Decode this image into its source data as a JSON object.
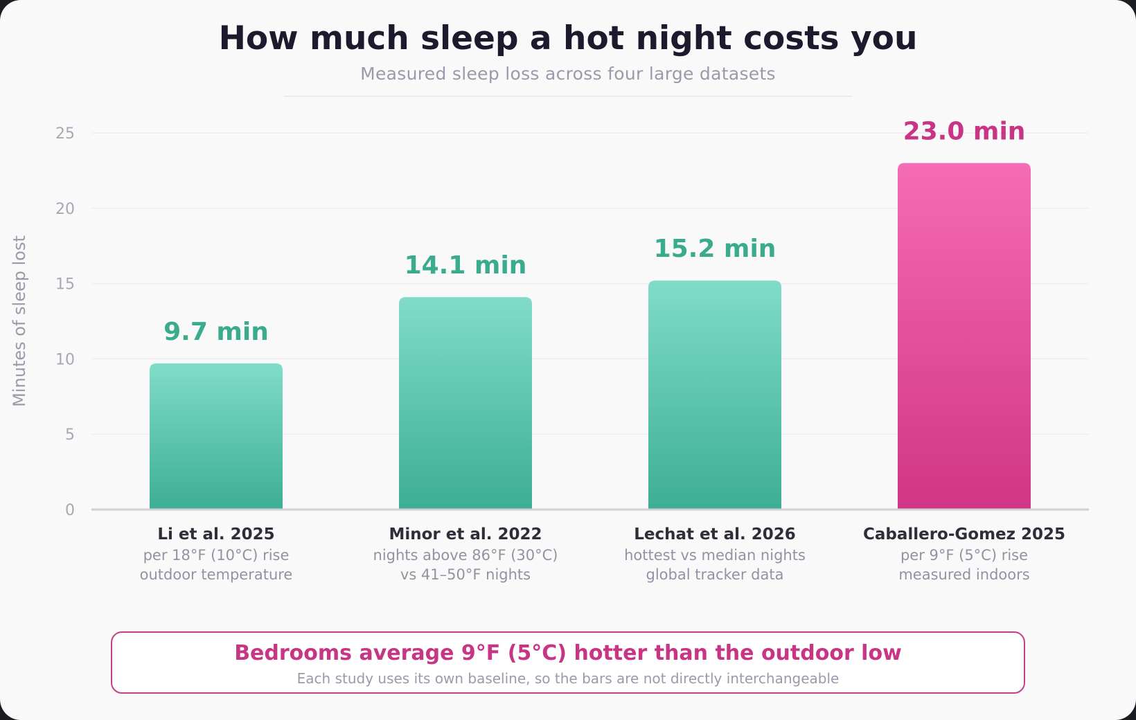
{
  "header": {
    "title": "How much sleep a hot night costs you",
    "subtitle": "Measured sleep loss across four large datasets"
  },
  "chart_data": {
    "type": "bar",
    "ylabel": "Minutes of sleep lost",
    "ylim": [
      0,
      25
    ],
    "yticks": [
      0,
      5,
      10,
      15,
      20,
      25
    ],
    "value_suffix": " min",
    "grid": true,
    "categories": [
      "Li et al. 2025",
      "Minor et al. 2022",
      "Lechat et al. 2026",
      "Caballero-Gomez 2025"
    ],
    "category_notes": [
      [
        "per 18°F (10°C) rise",
        "outdoor temperature"
      ],
      [
        "nights above 86°F (30°C)",
        "vs 41–50°F nights"
      ],
      [
        "hottest vs median nights",
        "global tracker data"
      ],
      [
        "per 9°F (5°C) rise",
        "measured indoors"
      ]
    ],
    "values": [
      9.7,
      14.1,
      15.2,
      23.0
    ],
    "value_labels": [
      "9.7 min",
      "14.1 min",
      "15.2 min",
      "23.0 min"
    ],
    "highlight_index": 3,
    "colors": {
      "teal_top": "#80dcc8",
      "teal_bottom": "#3dae94",
      "teal_label": "#3aab8c",
      "pink_top": "#f56bb5",
      "pink_bottom": "#d13585",
      "pink_label": "#c93585",
      "axis_tick": "#a8a8b4",
      "grid": "#eeeef1",
      "baseline": "#d0d0d6",
      "category_text": "#2e2e3a",
      "note_text": "#9292a2"
    }
  },
  "note": {
    "title": "Bedrooms average 9°F (5°C) hotter than the outdoor low",
    "subtitle": "Each study uses its own baseline, so the bars are not directly interchangeable"
  }
}
